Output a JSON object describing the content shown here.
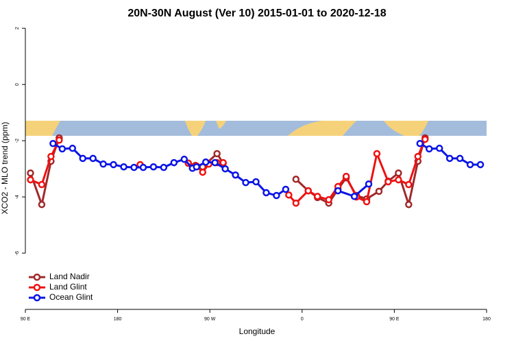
{
  "chart_data": {
    "type": "line",
    "title": "20N-30N August (Ver 10)   2015-01-01 to 2020-12-18",
    "x_label": "Longitude",
    "y_label": "XCO2 - MLO trend (ppm)",
    "xlim": [
      90,
      540
    ],
    "xticks": [
      {
        "value": 90,
        "label": "90 E"
      },
      180,
      {
        "value": 270,
        "label": "90 W"
      },
      {
        "value": 360,
        "label": "0"
      },
      {
        "value": 450,
        "label": "90 E"
      },
      {
        "value": 540,
        "label": "180"
      }
    ],
    "ylim": [
      -8,
      2.2
    ],
    "yticks": [
      -6,
      -4,
      -2,
      0,
      2
    ],
    "legend": "bottom-left",
    "series": [
      {
        "name": "Land Nadir",
        "color": "#a0282a",
        "x": [
          95,
          106,
          115,
          123,
          null,
          249,
          256,
          263,
          277,
          283,
          null,
          354,
          366,
          375,
          386,
          395,
          403,
          413,
          423,
          435,
          444,
          454,
          464,
          473,
          480
        ],
        "values": [
          -3.15,
          -4.27,
          -2.73,
          -1.9,
          null,
          -2.8,
          -2.88,
          -2.93,
          -2.46,
          -2.8,
          null,
          -3.37,
          -3.78,
          -4.02,
          -4.22,
          -3.73,
          -3.32,
          -3.95,
          -4.07,
          -3.8,
          -3.44,
          -3.15,
          -4.27,
          -2.73,
          -1.9
        ]
      },
      {
        "name": "Land Glint",
        "color": "#ee1111",
        "x": [
          95,
          106,
          115,
          123,
          null,
          202,
          null,
          249,
          257,
          263,
          269,
          277,
          283,
          null,
          347,
          354,
          366,
          375,
          386,
          395,
          403,
          413,
          423,
          433,
          444,
          454,
          464,
          473,
          480
        ],
        "values": [
          -3.39,
          -3.56,
          -2.56,
          -1.98,
          null,
          -2.85,
          null,
          -2.8,
          -2.9,
          -3.12,
          -2.83,
          -2.78,
          -2.78,
          null,
          -3.93,
          -4.22,
          -3.78,
          -3.98,
          -4.1,
          -3.63,
          -3.27,
          -4.0,
          -4.17,
          -2.46,
          -3.46,
          -3.39,
          -3.56,
          -2.56,
          -1.95
        ]
      },
      {
        "name": "Ocean Glint",
        "color": "#0a14e6",
        "x": [
          117,
          126,
          136,
          146,
          156,
          166,
          176,
          186,
          196,
          205,
          215,
          225,
          235,
          245,
          253,
          257,
          266,
          275,
          285,
          295,
          305,
          315,
          325,
          335,
          344,
          null,
          395,
          411,
          425,
          null,
          475,
          484,
          494,
          504,
          514,
          524,
          534
        ],
        "values": [
          -2.1,
          -2.29,
          -2.27,
          -2.63,
          -2.63,
          -2.83,
          -2.85,
          -2.93,
          -2.95,
          -2.95,
          -2.93,
          -2.95,
          -2.78,
          -2.66,
          -2.98,
          -2.93,
          -2.76,
          -2.78,
          -3.0,
          -3.22,
          -3.49,
          -3.46,
          -3.85,
          -3.95,
          -3.73,
          null,
          -3.78,
          -3.98,
          -3.54,
          null,
          -2.1,
          -2.29,
          -2.27,
          -2.63,
          -2.63,
          -2.85,
          -2.85
        ]
      }
    ]
  }
}
